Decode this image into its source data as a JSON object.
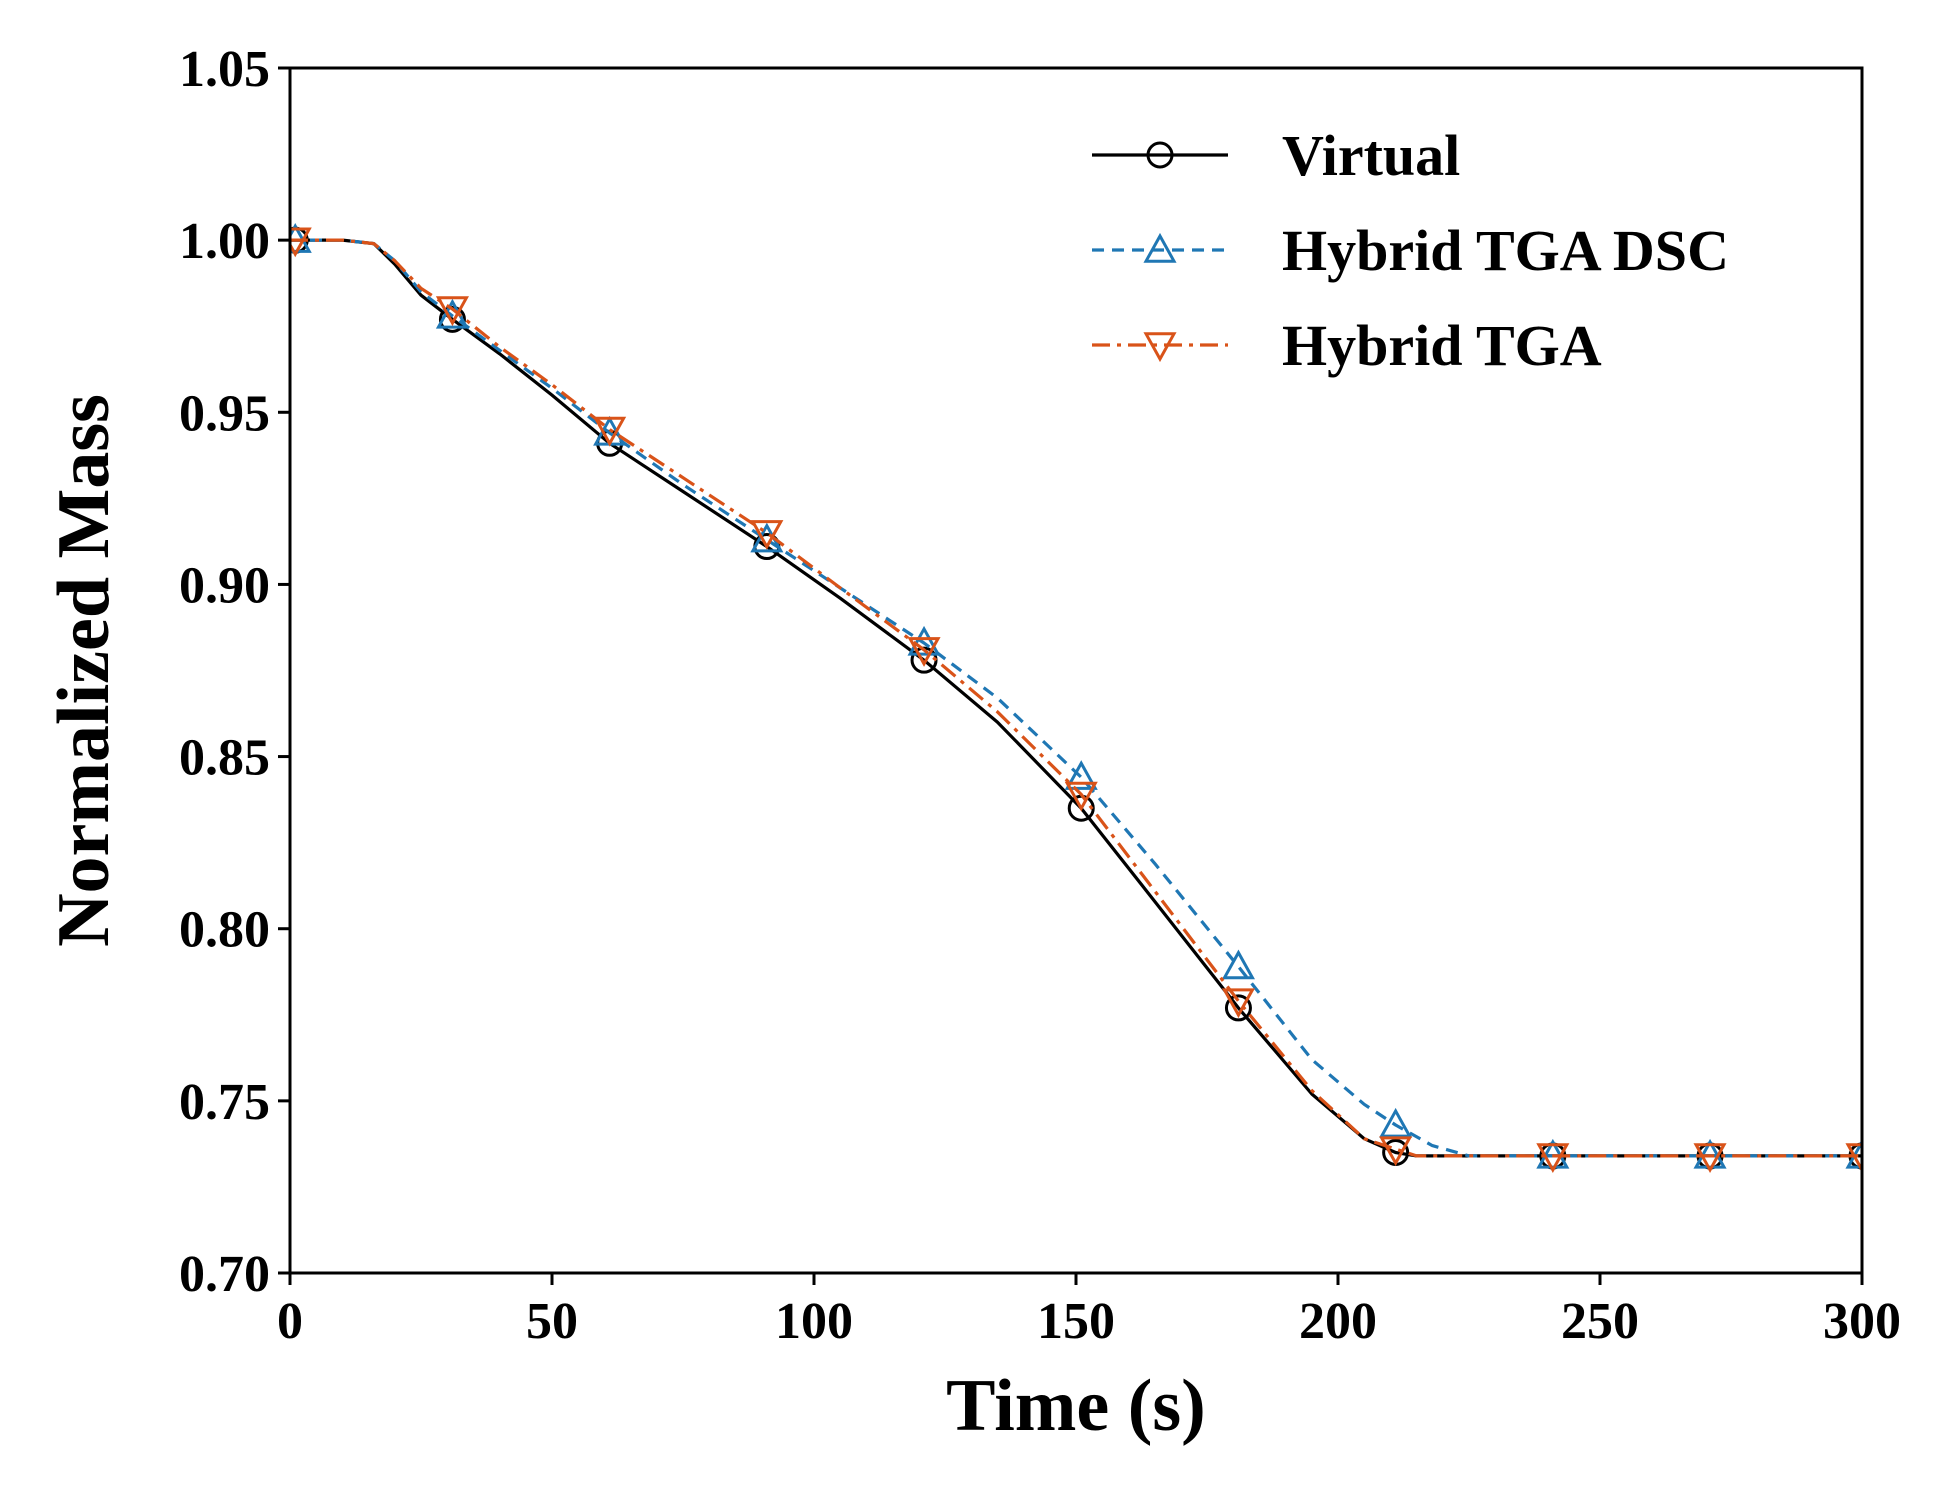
{
  "chart_data": {
    "type": "line",
    "title": "",
    "xlabel": "Time (s)",
    "ylabel": "Normalized Mass",
    "xlim": [
      0,
      300
    ],
    "ylim": [
      0.7,
      1.05
    ],
    "xticks": [
      0,
      50,
      100,
      150,
      200,
      250,
      300
    ],
    "xtick_labels": [
      "0",
      "50",
      "100",
      "150",
      "200",
      "250",
      "300"
    ],
    "yticks": [
      0.7,
      0.75,
      0.8,
      0.85,
      0.9,
      0.95,
      1.0,
      1.05
    ],
    "ytick_labels": [
      "0.70",
      "0.75",
      "0.80",
      "0.85",
      "0.90",
      "0.95",
      "1.00",
      "1.05"
    ],
    "grid": false,
    "legend_position": "top-right",
    "series": [
      {
        "name": "Virtual",
        "color": "#000000",
        "line_style": "solid",
        "marker": "circle",
        "x": [
          0,
          10,
          16,
          20,
          25,
          31,
          40,
          50,
          61,
          75,
          91,
          105,
          121,
          135,
          151,
          165,
          181,
          195,
          205,
          211,
          215,
          225,
          241,
          271,
          300
        ],
        "y": [
          1.0,
          1.0,
          0.999,
          0.993,
          0.984,
          0.977,
          0.967,
          0.955,
          0.941,
          0.927,
          0.911,
          0.896,
          0.878,
          0.86,
          0.835,
          0.808,
          0.777,
          0.752,
          0.739,
          0.735,
          0.734,
          0.734,
          0.734,
          0.734,
          0.734
        ],
        "marker_x": [
          1,
          31,
          61,
          91,
          121,
          151,
          181,
          211,
          241,
          271,
          300
        ],
        "marker_y": [
          1.0,
          0.977,
          0.941,
          0.911,
          0.878,
          0.835,
          0.777,
          0.735,
          0.734,
          0.734,
          0.734
        ]
      },
      {
        "name": "Hybrid TGA DSC",
        "color": "#1f77b4",
        "line_style": "dashed",
        "marker": "triangle-up",
        "x": [
          0,
          10,
          16,
          20,
          25,
          31,
          40,
          50,
          61,
          75,
          91,
          105,
          121,
          135,
          151,
          165,
          181,
          195,
          205,
          211,
          218,
          225,
          241,
          271,
          300
        ],
        "y": [
          1.0,
          1.0,
          0.999,
          0.994,
          0.985,
          0.978,
          0.968,
          0.957,
          0.944,
          0.929,
          0.913,
          0.899,
          0.883,
          0.867,
          0.844,
          0.819,
          0.789,
          0.762,
          0.749,
          0.743,
          0.737,
          0.734,
          0.734,
          0.734,
          0.734
        ],
        "marker_x": [
          1,
          31,
          61,
          91,
          121,
          151,
          181,
          211,
          241,
          271,
          300
        ],
        "marker_y": [
          1.0,
          0.978,
          0.944,
          0.913,
          0.883,
          0.844,
          0.789,
          0.743,
          0.734,
          0.734,
          0.734
        ]
      },
      {
        "name": "Hybrid TGA",
        "color": "#d95319",
        "line_style": "dashdot",
        "marker": "triangle-down",
        "x": [
          0,
          10,
          16,
          20,
          25,
          31,
          40,
          50,
          61,
          75,
          91,
          105,
          121,
          135,
          151,
          165,
          181,
          195,
          205,
          211,
          215,
          225,
          241,
          271,
          300
        ],
        "y": [
          1.0,
          1.0,
          0.999,
          0.994,
          0.986,
          0.98,
          0.969,
          0.958,
          0.945,
          0.931,
          0.915,
          0.899,
          0.881,
          0.863,
          0.839,
          0.811,
          0.779,
          0.753,
          0.739,
          0.736,
          0.734,
          0.734,
          0.734,
          0.734,
          0.734
        ],
        "marker_x": [
          1,
          31,
          61,
          91,
          121,
          151,
          181,
          211,
          241,
          271,
          300
        ],
        "marker_y": [
          1.0,
          0.98,
          0.945,
          0.915,
          0.881,
          0.839,
          0.779,
          0.736,
          0.734,
          0.734,
          0.734
        ]
      }
    ]
  }
}
